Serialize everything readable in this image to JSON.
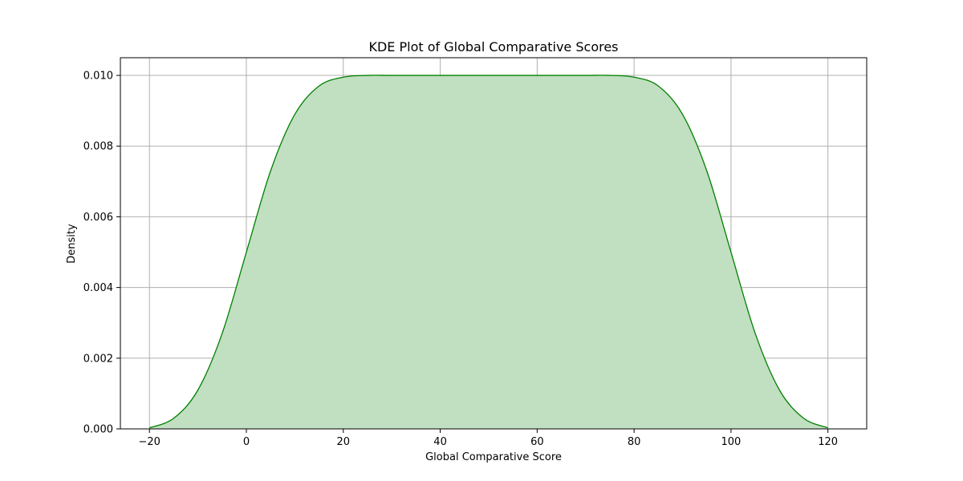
{
  "chart_data": {
    "type": "area",
    "title": "KDE Plot of Global Comparative Scores",
    "xlabel": "Global Comparative Score",
    "ylabel": "Density",
    "xlim": [
      -26,
      128
    ],
    "ylim": [
      0,
      0.0105
    ],
    "x_ticks": [
      -20,
      0,
      20,
      40,
      60,
      80,
      100,
      120
    ],
    "x_tick_labels": [
      "−20",
      "0",
      "20",
      "40",
      "60",
      "80",
      "100",
      "120"
    ],
    "y_ticks": [
      0,
      0.002,
      0.004,
      0.006,
      0.008,
      0.01
    ],
    "y_tick_labels": [
      "0.000",
      "0.002",
      "0.004",
      "0.006",
      "0.008",
      "0.010"
    ],
    "grid": true,
    "colors": {
      "line": "#008000",
      "fill": "#c1dfc1",
      "grid": "#b0b0b0",
      "axis": "#000000"
    },
    "series": [
      {
        "x": [
          -20,
          -15,
          -10,
          -5,
          0,
          5,
          10,
          15,
          20,
          25,
          30,
          40,
          50,
          60,
          70,
          75,
          80,
          85,
          90,
          95,
          100,
          105,
          110,
          115,
          120
        ],
        "y": [
          3e-05,
          0.0003,
          0.0011,
          0.0027,
          0.005,
          0.0073,
          0.0089,
          0.0097,
          0.00995,
          0.01,
          0.01,
          0.01,
          0.01,
          0.01,
          0.01,
          0.01,
          0.00995,
          0.0097,
          0.0089,
          0.0073,
          0.005,
          0.0027,
          0.0011,
          0.0003,
          3e-05
        ]
      }
    ]
  }
}
